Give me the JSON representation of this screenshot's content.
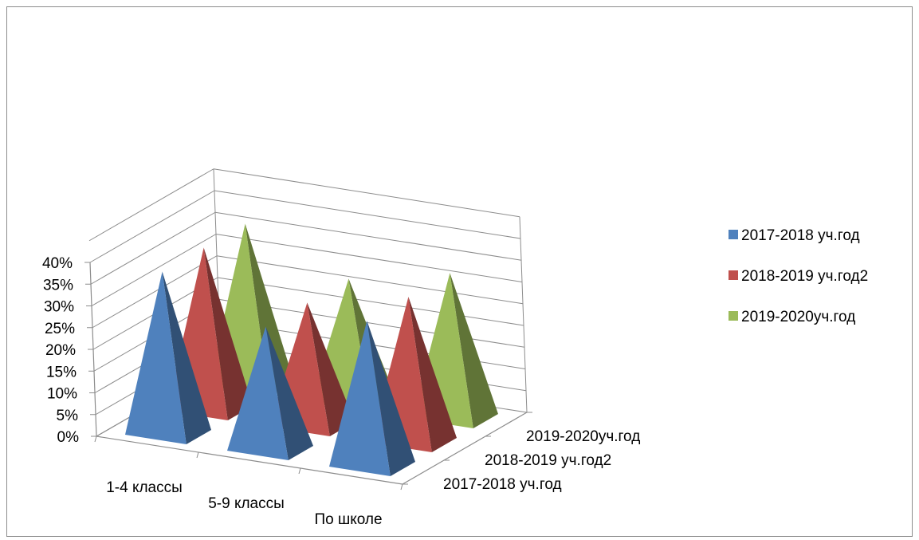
{
  "chart_data": {
    "type": "bar",
    "subtype": "3d-pyramid",
    "title": "",
    "xlabel": "",
    "ylabel": "",
    "categories": [
      "1-4 классы",
      "5-9 классы",
      "По школе"
    ],
    "series": [
      {
        "name": "2017-2018 уч.год",
        "color": "#4f81bd",
        "values": [
          0.37,
          0.28,
          0.33
        ]
      },
      {
        "name": "2018-2019 уч.год2",
        "color": "#c0504d",
        "values": [
          0.37,
          0.28,
          0.33
        ]
      },
      {
        "name": "2019-2020уч.год",
        "color": "#9bbb59",
        "values": [
          0.37,
          0.28,
          0.33
        ]
      }
    ],
    "y_ticks": [
      "0%",
      "5%",
      "10%",
      "15%",
      "20%",
      "25%",
      "30%",
      "35%",
      "40%"
    ],
    "ylim": [
      0,
      0.45
    ],
    "gridlines": true,
    "legend_position": "right",
    "depth_labels": [
      "2017-2018 уч.год",
      "2018-2019 уч.год2",
      "2019-2020уч.год"
    ]
  }
}
